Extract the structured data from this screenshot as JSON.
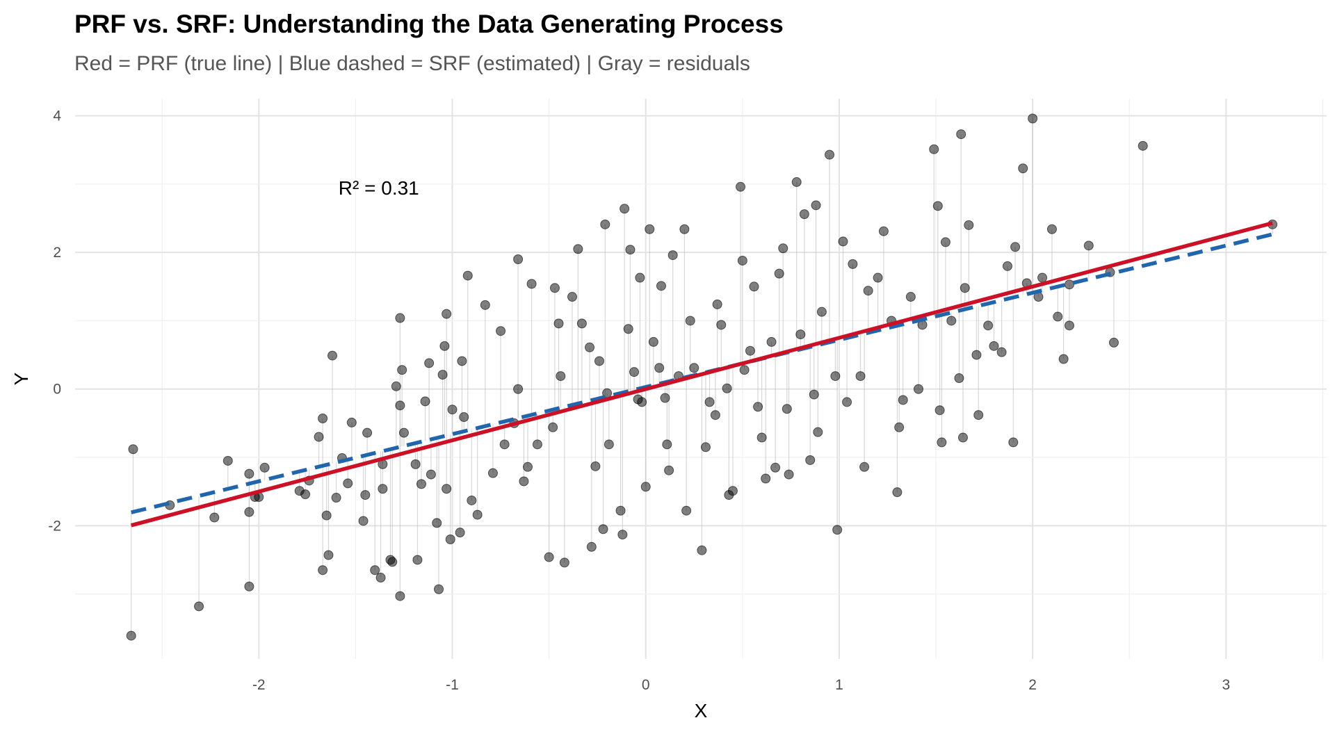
{
  "chart_data": {
    "type": "scatter",
    "title": "PRF vs. SRF: Understanding the Data Generating Process",
    "subtitle": "Red = PRF (true line) | Blue dashed = SRF (estimated) | Gray = residuals",
    "xlabel": "X",
    "ylabel": "Y",
    "xlim": [
      -2.95,
      3.52
    ],
    "ylim": [
      -3.95,
      4.25
    ],
    "x_ticks": [
      -2,
      -1,
      0,
      1,
      2,
      3
    ],
    "y_ticks": [
      -2,
      0,
      2,
      4
    ],
    "x_tick_labels": [
      "-2",
      "-1",
      "0",
      "1",
      "2",
      "3"
    ],
    "y_tick_labels": [
      "-2",
      "0",
      "2",
      "4"
    ],
    "grid": true,
    "annotation": {
      "text": "R² = 0.31",
      "x": -1.38,
      "y": 2.95
    },
    "prf": {
      "name": "PRF (true line)",
      "intercept": 0.0,
      "slope": 0.75,
      "color": "#cc1126"
    },
    "srf": {
      "name": "SRF (estimated)",
      "intercept": 0.03,
      "slope": 0.69,
      "color": "#2166ac"
    },
    "residual_color": "#bdbdbd",
    "point_color": "#000000",
    "points": [
      [
        -2.65,
        -0.88
      ],
      [
        -2.66,
        -3.61
      ],
      [
        -2.46,
        -1.7
      ],
      [
        -2.31,
        -3.18
      ],
      [
        -2.23,
        -1.88
      ],
      [
        -2.16,
        -1.05
      ],
      [
        -2.05,
        -1.24
      ],
      [
        -2.05,
        -1.8
      ],
      [
        -2.05,
        -2.89
      ],
      [
        -2.02,
        -1.58
      ],
      [
        -2.0,
        -1.58
      ],
      [
        -1.97,
        -1.15
      ],
      [
        -1.79,
        -1.49
      ],
      [
        -1.76,
        -1.54
      ],
      [
        -1.74,
        -1.34
      ],
      [
        -1.69,
        -0.7
      ],
      [
        -1.67,
        -0.43
      ],
      [
        -1.67,
        -2.65
      ],
      [
        -1.65,
        -1.85
      ],
      [
        -1.64,
        -2.43
      ],
      [
        -1.62,
        0.49
      ],
      [
        -1.6,
        -1.59
      ],
      [
        -1.57,
        -1.01
      ],
      [
        -1.54,
        -1.38
      ],
      [
        -1.52,
        -0.49
      ],
      [
        -1.46,
        -1.93
      ],
      [
        -1.45,
        -1.55
      ],
      [
        -1.44,
        -0.64
      ],
      [
        -1.4,
        -2.65
      ],
      [
        -1.37,
        -2.76
      ],
      [
        -1.36,
        -1.46
      ],
      [
        -1.36,
        -1.1
      ],
      [
        -1.32,
        -2.5
      ],
      [
        -1.31,
        -2.53
      ],
      [
        -1.29,
        0.04
      ],
      [
        -1.27,
        -3.03
      ],
      [
        -1.27,
        1.04
      ],
      [
        -1.27,
        -0.24
      ],
      [
        -1.26,
        0.28
      ],
      [
        -1.25,
        -0.64
      ],
      [
        -1.19,
        -1.1
      ],
      [
        -1.18,
        -2.5
      ],
      [
        -1.16,
        -1.39
      ],
      [
        -1.14,
        -0.18
      ],
      [
        -1.12,
        0.38
      ],
      [
        -1.11,
        -1.25
      ],
      [
        -1.08,
        -1.96
      ],
      [
        -1.07,
        -2.93
      ],
      [
        -1.05,
        0.21
      ],
      [
        -1.04,
        0.63
      ],
      [
        -1.03,
        1.1
      ],
      [
        -1.03,
        -1.46
      ],
      [
        -1.01,
        -2.2
      ],
      [
        -1.0,
        -0.3
      ],
      [
        -0.96,
        -2.1
      ],
      [
        -0.95,
        0.41
      ],
      [
        -0.94,
        -0.41
      ],
      [
        -0.92,
        1.66
      ],
      [
        -0.9,
        -1.63
      ],
      [
        -0.87,
        -1.84
      ],
      [
        -0.83,
        1.23
      ],
      [
        -0.79,
        -1.23
      ],
      [
        -0.75,
        0.85
      ],
      [
        -0.73,
        -0.81
      ],
      [
        -0.68,
        -0.5
      ],
      [
        -0.66,
        1.9
      ],
      [
        -0.66,
        0.0
      ],
      [
        -0.63,
        -1.35
      ],
      [
        -0.61,
        -1.14
      ],
      [
        -0.59,
        1.54
      ],
      [
        -0.56,
        -0.81
      ],
      [
        -0.5,
        -2.46
      ],
      [
        -0.48,
        -0.56
      ],
      [
        -0.47,
        1.48
      ],
      [
        -0.45,
        0.96
      ],
      [
        -0.44,
        0.19
      ],
      [
        -0.42,
        -2.54
      ],
      [
        -0.38,
        1.35
      ],
      [
        -0.35,
        2.05
      ],
      [
        -0.33,
        0.96
      ],
      [
        -0.29,
        0.61
      ],
      [
        -0.28,
        -2.31
      ],
      [
        -0.26,
        -1.13
      ],
      [
        -0.24,
        0.41
      ],
      [
        -0.22,
        -2.05
      ],
      [
        -0.21,
        2.41
      ],
      [
        -0.2,
        -0.06
      ],
      [
        -0.19,
        -0.81
      ],
      [
        -0.13,
        -1.78
      ],
      [
        -0.12,
        -2.13
      ],
      [
        -0.11,
        2.64
      ],
      [
        -0.09,
        0.88
      ],
      [
        -0.08,
        2.04
      ],
      [
        -0.06,
        0.25
      ],
      [
        -0.04,
        -0.15
      ],
      [
        -0.03,
        1.63
      ],
      [
        -0.02,
        -0.19
      ],
      [
        0.0,
        -1.43
      ],
      [
        0.02,
        2.34
      ],
      [
        0.04,
        0.69
      ],
      [
        0.07,
        0.31
      ],
      [
        0.08,
        1.51
      ],
      [
        0.1,
        -0.13
      ],
      [
        0.11,
        -0.81
      ],
      [
        0.12,
        -1.19
      ],
      [
        0.14,
        1.96
      ],
      [
        0.17,
        0.19
      ],
      [
        0.2,
        2.34
      ],
      [
        0.21,
        -1.78
      ],
      [
        0.23,
        1.0
      ],
      [
        0.25,
        0.31
      ],
      [
        0.29,
        -2.36
      ],
      [
        0.31,
        -0.85
      ],
      [
        0.33,
        -0.19
      ],
      [
        0.36,
        -0.38
      ],
      [
        0.37,
        1.24
      ],
      [
        0.39,
        0.94
      ],
      [
        0.42,
        0.01
      ],
      [
        0.43,
        -1.55
      ],
      [
        0.45,
        -1.49
      ],
      [
        0.49,
        2.96
      ],
      [
        0.5,
        1.88
      ],
      [
        0.51,
        0.28
      ],
      [
        0.54,
        0.56
      ],
      [
        0.56,
        1.5
      ],
      [
        0.58,
        -0.26
      ],
      [
        0.6,
        -0.71
      ],
      [
        0.62,
        -1.31
      ],
      [
        0.65,
        0.69
      ],
      [
        0.67,
        -1.15
      ],
      [
        0.69,
        1.69
      ],
      [
        0.71,
        2.06
      ],
      [
        0.73,
        -0.29
      ],
      [
        0.74,
        -1.25
      ],
      [
        0.78,
        3.03
      ],
      [
        0.8,
        0.8
      ],
      [
        0.82,
        2.56
      ],
      [
        0.85,
        -1.04
      ],
      [
        0.87,
        -0.08
      ],
      [
        0.88,
        2.69
      ],
      [
        0.89,
        -0.63
      ],
      [
        0.91,
        1.13
      ],
      [
        0.95,
        3.43
      ],
      [
        0.98,
        0.19
      ],
      [
        0.99,
        -2.06
      ],
      [
        1.02,
        2.16
      ],
      [
        1.04,
        -0.19
      ],
      [
        1.07,
        1.83
      ],
      [
        1.11,
        0.19
      ],
      [
        1.13,
        -1.14
      ],
      [
        1.15,
        1.44
      ],
      [
        1.2,
        1.63
      ],
      [
        1.23,
        2.31
      ],
      [
        1.27,
        1.0
      ],
      [
        1.3,
        -1.51
      ],
      [
        1.31,
        -0.56
      ],
      [
        1.33,
        -0.16
      ],
      [
        1.37,
        1.35
      ],
      [
        1.41,
        0.0
      ],
      [
        1.43,
        0.94
      ],
      [
        1.49,
        3.51
      ],
      [
        1.51,
        2.68
      ],
      [
        1.52,
        -0.31
      ],
      [
        1.53,
        -0.78
      ],
      [
        1.55,
        2.15
      ],
      [
        1.58,
        1.0
      ],
      [
        1.62,
        0.16
      ],
      [
        1.63,
        3.73
      ],
      [
        1.64,
        -0.71
      ],
      [
        1.65,
        1.48
      ],
      [
        1.67,
        2.4
      ],
      [
        1.71,
        0.5
      ],
      [
        1.72,
        -0.38
      ],
      [
        1.77,
        0.93
      ],
      [
        1.8,
        0.63
      ],
      [
        1.84,
        0.54
      ],
      [
        1.87,
        1.8
      ],
      [
        1.9,
        -0.78
      ],
      [
        1.91,
        2.08
      ],
      [
        1.95,
        3.23
      ],
      [
        1.97,
        1.55
      ],
      [
        2.0,
        3.96
      ],
      [
        2.03,
        1.35
      ],
      [
        2.05,
        1.63
      ],
      [
        2.1,
        2.34
      ],
      [
        2.13,
        1.06
      ],
      [
        2.16,
        0.44
      ],
      [
        2.19,
        1.53
      ],
      [
        2.19,
        0.93
      ],
      [
        2.29,
        2.1
      ],
      [
        2.4,
        1.71
      ],
      [
        2.42,
        0.68
      ],
      [
        2.57,
        3.56
      ],
      [
        3.24,
        2.41
      ]
    ]
  }
}
